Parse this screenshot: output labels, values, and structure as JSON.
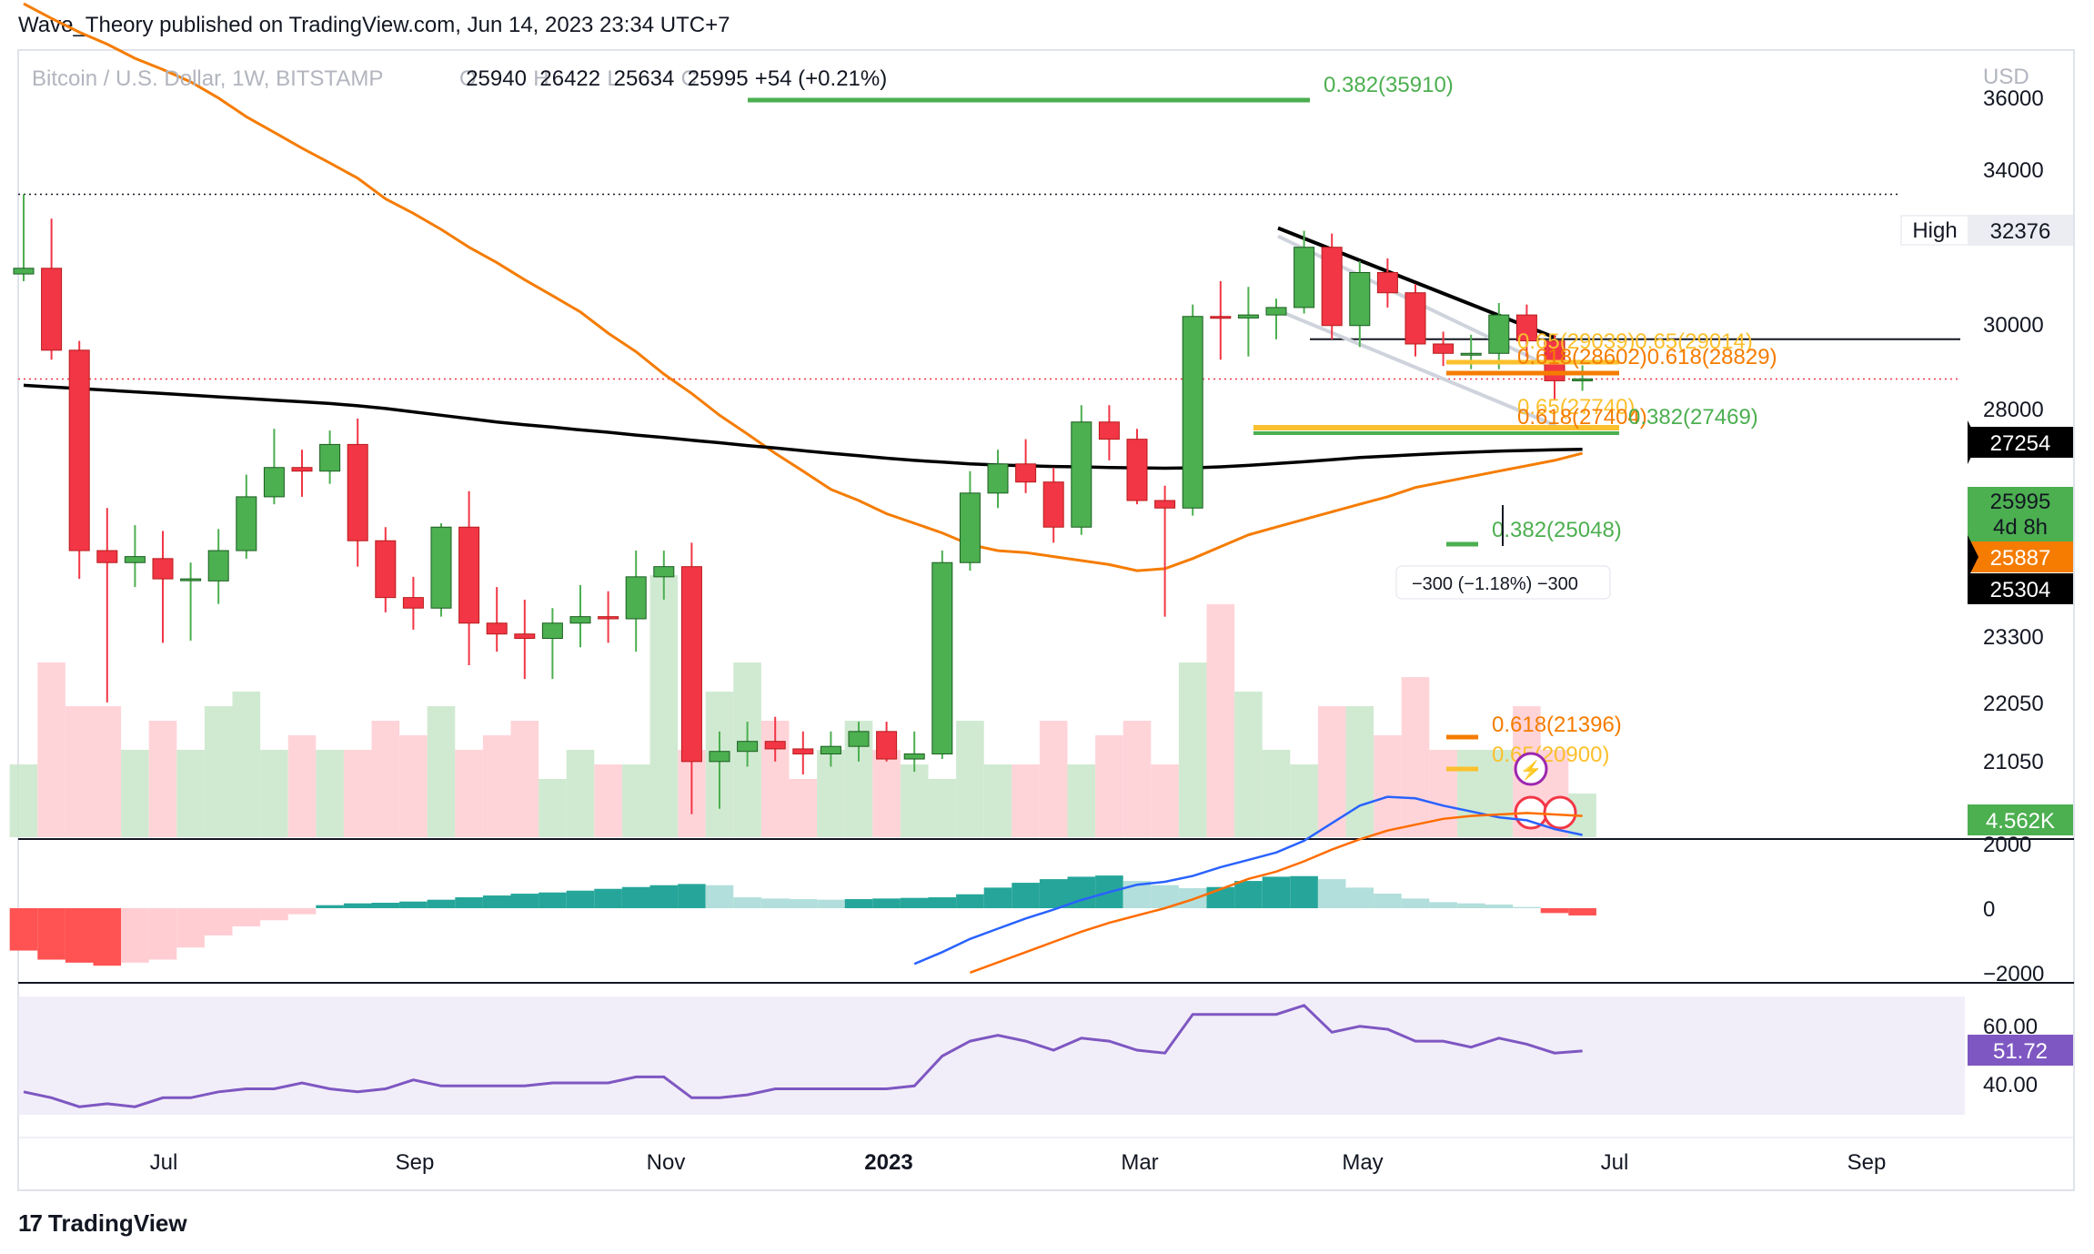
{
  "header": {
    "publisher_line": "Wave_Theory published on TradingView.com, Jun 14, 2023 23:34 UTC+7"
  },
  "footer": {
    "brand": "TradingView",
    "logo_glyph": "17"
  },
  "symbol_bar": {
    "symbol": "Bitcoin / U.S. Dollar, 1W, BITSTAMP",
    "o_label": "O",
    "o": "25940",
    "h_label": "H",
    "h": "26422",
    "l_label": "L",
    "l": "25634",
    "c_label": "C",
    "c": "25995",
    "change": "+54 (+0.21%)"
  },
  "colors": {
    "up": "#26a69a",
    "up_candle": "#4caf50",
    "down": "#f23645",
    "ma_orange": "#f57c00",
    "ma_black": "#000000",
    "macd_blue": "#2962ff",
    "macd_orange": "#ff6d00",
    "rsi": "#7e57c2",
    "fib_green": "#4caf50",
    "fib_orange": "#f57c00",
    "fib_yellow": "#fbc02d"
  },
  "chart_data": [
    {
      "type": "candlestick",
      "title": "Bitcoin / U.S. Dollar, 1W, BITSTAMP",
      "currency": "USD",
      "y_ticks": [
        "36000",
        "34000",
        "32376",
        "30000",
        "28000",
        "27254",
        "25995",
        "25887",
        "25304",
        "23300",
        "22050",
        "21050"
      ],
      "x_ticks": [
        "Jul",
        "Sep",
        "Nov",
        "2023",
        "Mar",
        "May",
        "Jul",
        "Sep"
      ],
      "candles": [
        {
          "o": 29450,
          "h": 32376,
          "l": 29200,
          "c": 29650
        },
        {
          "o": 29650,
          "h": 31450,
          "l": 26600,
          "c": 26900
        },
        {
          "o": 26900,
          "h": 27200,
          "l": 20500,
          "c": 21200
        },
        {
          "o": 21200,
          "h": 22300,
          "l": 17700,
          "c": 20900
        },
        {
          "o": 20900,
          "h": 21850,
          "l": 20300,
          "c": 21050
        },
        {
          "o": 21000,
          "h": 21700,
          "l": 19000,
          "c": 20500
        },
        {
          "o": 20500,
          "h": 20900,
          "l": 19050,
          "c": 20500
        },
        {
          "o": 20450,
          "h": 21750,
          "l": 19900,
          "c": 21200
        },
        {
          "o": 21200,
          "h": 23200,
          "l": 21000,
          "c": 22600
        },
        {
          "o": 22600,
          "h": 24500,
          "l": 22400,
          "c": 23400
        },
        {
          "o": 23400,
          "h": 23900,
          "l": 22600,
          "c": 23300
        },
        {
          "o": 23300,
          "h": 24450,
          "l": 22950,
          "c": 24050
        },
        {
          "o": 24050,
          "h": 24800,
          "l": 20800,
          "c": 21450
        },
        {
          "o": 21450,
          "h": 21800,
          "l": 19700,
          "c": 20050
        },
        {
          "o": 20050,
          "h": 20550,
          "l": 19300,
          "c": 19800
        },
        {
          "o": 19800,
          "h": 21900,
          "l": 19600,
          "c": 21800
        },
        {
          "o": 21800,
          "h": 22750,
          "l": 18500,
          "c": 19450
        },
        {
          "o": 19450,
          "h": 20300,
          "l": 18800,
          "c": 19200
        },
        {
          "o": 19200,
          "h": 20000,
          "l": 18200,
          "c": 19100
        },
        {
          "o": 19100,
          "h": 19800,
          "l": 18200,
          "c": 19450
        },
        {
          "o": 19450,
          "h": 20350,
          "l": 18900,
          "c": 19600
        },
        {
          "o": 19600,
          "h": 20200,
          "l": 19000,
          "c": 19550
        },
        {
          "o": 19550,
          "h": 21200,
          "l": 18800,
          "c": 20550
        },
        {
          "o": 20550,
          "h": 21200,
          "l": 20000,
          "c": 20800
        },
        {
          "o": 20800,
          "h": 21400,
          "l": 15500,
          "c": 16500
        },
        {
          "o": 16500,
          "h": 17100,
          "l": 15600,
          "c": 16700
        },
        {
          "o": 16700,
          "h": 17300,
          "l": 16400,
          "c": 16900
        },
        {
          "o": 16900,
          "h": 17400,
          "l": 16500,
          "c": 16750
        },
        {
          "o": 16750,
          "h": 17100,
          "l": 16250,
          "c": 16650
        },
        {
          "o": 16650,
          "h": 17100,
          "l": 16400,
          "c": 16800
        },
        {
          "o": 16800,
          "h": 17300,
          "l": 16500,
          "c": 17100
        },
        {
          "o": 17100,
          "h": 17300,
          "l": 16500,
          "c": 16550
        },
        {
          "o": 16550,
          "h": 17100,
          "l": 16300,
          "c": 16650
        },
        {
          "o": 16650,
          "h": 21200,
          "l": 16550,
          "c": 20900
        },
        {
          "o": 20900,
          "h": 23300,
          "l": 20700,
          "c": 22700
        },
        {
          "o": 22700,
          "h": 23900,
          "l": 22300,
          "c": 23500
        },
        {
          "o": 23500,
          "h": 24200,
          "l": 22700,
          "c": 23000
        },
        {
          "o": 23000,
          "h": 23400,
          "l": 21400,
          "c": 21800
        },
        {
          "o": 21800,
          "h": 25200,
          "l": 21600,
          "c": 24700
        },
        {
          "o": 24700,
          "h": 25200,
          "l": 23600,
          "c": 24200
        },
        {
          "o": 24200,
          "h": 24500,
          "l": 22400,
          "c": 22500
        },
        {
          "o": 22500,
          "h": 22900,
          "l": 19600,
          "c": 22300
        },
        {
          "o": 22300,
          "h": 28400,
          "l": 22100,
          "c": 28000
        },
        {
          "o": 28000,
          "h": 29200,
          "l": 26600,
          "c": 27950
        },
        {
          "o": 27950,
          "h": 29000,
          "l": 26700,
          "c": 28050
        },
        {
          "o": 28050,
          "h": 28600,
          "l": 27250,
          "c": 28300
        },
        {
          "o": 28300,
          "h": 31000,
          "l": 28100,
          "c": 30400
        },
        {
          "o": 30400,
          "h": 30900,
          "l": 27250,
          "c": 27700
        },
        {
          "o": 27700,
          "h": 29900,
          "l": 27000,
          "c": 29500
        },
        {
          "o": 29500,
          "h": 30000,
          "l": 28300,
          "c": 28800
        },
        {
          "o": 28800,
          "h": 29100,
          "l": 26700,
          "c": 27100
        },
        {
          "o": 27100,
          "h": 27500,
          "l": 26400,
          "c": 26800
        },
        {
          "o": 26800,
          "h": 27400,
          "l": 26300,
          "c": 26800
        },
        {
          "o": 26800,
          "h": 28450,
          "l": 26300,
          "c": 28050
        },
        {
          "o": 28050,
          "h": 28400,
          "l": 26700,
          "c": 27200
        },
        {
          "o": 27200,
          "h": 27400,
          "l": 25350,
          "c": 25940
        },
        {
          "o": 25940,
          "h": 26422,
          "l": 25634,
          "c": 25995
        }
      ],
      "volume": [
        5,
        12,
        9,
        9,
        6,
        8,
        6,
        9,
        10,
        6,
        7,
        6,
        6,
        8,
        7,
        9,
        6,
        7,
        8,
        4,
        6,
        5,
        5,
        18,
        6,
        10,
        12,
        8,
        4,
        6,
        8,
        6,
        5,
        4,
        8,
        5,
        5,
        8,
        5,
        7,
        8,
        5,
        12,
        16,
        10,
        6,
        5,
        9,
        9,
        7,
        11,
        6,
        6,
        6,
        9,
        6,
        3
      ],
      "ma_orange": [
        40600,
        39900,
        39250,
        38700,
        38050,
        37550,
        37000,
        36300,
        35500,
        34850,
        34200,
        33600,
        33000,
        32200,
        31650,
        31050,
        30400,
        29850,
        29250,
        28700,
        28150,
        27450,
        26850,
        26150,
        25550,
        24900,
        24350,
        23800,
        23300,
        22800,
        22500,
        22150,
        21900,
        21650,
        21350,
        21200,
        21150,
        21050,
        20950,
        20850,
        20700,
        20750,
        21000,
        21300,
        21600,
        21800,
        22000,
        22200,
        22400,
        22600,
        22850,
        23000,
        23150,
        23300,
        23450,
        23600,
        23800
      ],
      "ma_black": [
        25800,
        25750,
        25700,
        25650,
        25600,
        25550,
        25500,
        25450,
        25400,
        25350,
        25300,
        25250,
        25180,
        25100,
        25000,
        24900,
        24800,
        24700,
        24620,
        24550,
        24470,
        24400,
        24320,
        24250,
        24170,
        24100,
        24020,
        23950,
        23870,
        23800,
        23730,
        23660,
        23600,
        23550,
        23500,
        23470,
        23450,
        23430,
        23420,
        23400,
        23390,
        23380,
        23390,
        23420,
        23460,
        23510,
        23560,
        23620,
        23680,
        23720,
        23760,
        23800,
        23830,
        23860,
        23880,
        23900,
        23910
      ],
      "price_scale_labels": [
        {
          "text": "32376",
          "tag": "High"
        },
        {
          "text": "27254"
        },
        {
          "text": "25995",
          "sub": "4d 8h"
        },
        {
          "text": "25887"
        },
        {
          "text": "25304"
        },
        {
          "text": "4.562K"
        }
      ],
      "annotations": {
        "fib_0382_35910": "0.382(35910)",
        "fib_065_upper": "0.65(29039)0.65(29014)",
        "fib_0618_upper": "0.618(28602)0.618(28829)",
        "fib_065_mid": "0.65(27740)",
        "fib_0618_mid": "0.618(27404)",
        "fib_0382_27469": "0.382(27469)",
        "fib_0382_25048": "0.382(25048)",
        "fib_0618_21396": "0.618(21396)",
        "fib_065_20900": "0.65(20900)",
        "measure_tool": "−300 (−1.18%) −300"
      }
    },
    {
      "type": "bar",
      "title": "MACD",
      "y_ticks": [
        "2000",
        "0",
        "−2000"
      ],
      "histogram": [
        -700,
        -850,
        -900,
        -950,
        -900,
        -850,
        -650,
        -450,
        -300,
        -200,
        -100,
        50,
        80,
        90,
        110,
        140,
        180,
        210,
        240,
        260,
        290,
        320,
        350,
        380,
        400,
        380,
        180,
        160,
        150,
        140,
        150,
        160,
        170,
        180,
        230,
        340,
        420,
        480,
        520,
        540,
        450,
        380,
        330,
        350,
        450,
        520,
        530,
        480,
        340,
        240,
        160,
        100,
        80,
        60,
        20,
        -80,
        -120
      ],
      "macd_line": [
        null,
        null,
        null,
        null,
        null,
        null,
        null,
        null,
        null,
        null,
        null,
        null,
        null,
        null,
        null,
        null,
        null,
        null,
        null,
        null,
        null,
        null,
        null,
        null,
        null,
        null,
        null,
        null,
        null,
        null,
        null,
        null,
        -1900,
        -1500,
        -1050,
        -700,
        -350,
        -50,
        280,
        550,
        800,
        900,
        1100,
        1400,
        1650,
        1900,
        2300,
        2900,
        3500,
        3800,
        3750,
        3500,
        3300,
        3100,
        3000,
        2700,
        2500
      ],
      "signal_line": [
        null,
        null,
        null,
        null,
        null,
        null,
        null,
        null,
        null,
        null,
        null,
        null,
        null,
        null,
        null,
        null,
        null,
        null,
        null,
        null,
        null,
        null,
        null,
        null,
        null,
        null,
        null,
        null,
        null,
        null,
        null,
        null,
        null,
        null,
        -2200,
        -1850,
        -1500,
        -1150,
        -800,
        -500,
        -250,
        0,
        300,
        650,
        1000,
        1250,
        1600,
        2000,
        2350,
        2650,
        2850,
        3050,
        3150,
        3200,
        3250,
        3200,
        3150
      ]
    },
    {
      "type": "line",
      "title": "RSI",
      "y_ticks": [
        "60.00",
        "51.72",
        "40.00"
      ],
      "values": [
        38,
        36,
        33,
        34,
        33,
        36,
        36,
        38,
        39,
        39,
        41,
        39,
        38,
        39,
        42,
        40,
        40,
        40,
        40,
        41,
        41,
        41,
        43,
        43,
        36,
        36,
        37,
        39,
        39,
        39,
        39,
        39,
        40,
        50,
        55,
        57,
        55,
        52,
        56,
        55,
        52,
        51,
        64,
        64,
        64,
        64,
        67,
        58,
        60,
        59,
        55,
        55,
        53,
        56,
        54,
        51,
        51.72
      ]
    }
  ]
}
